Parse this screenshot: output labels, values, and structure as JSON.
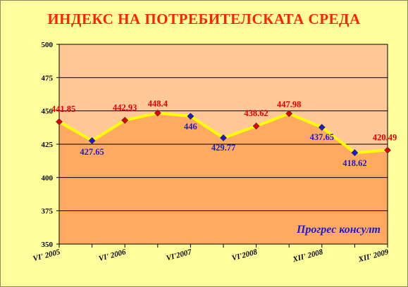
{
  "chart_data": {
    "type": "line",
    "title": "ИНДЕКС НА ПОТРЕБИТЕЛСКАТА СРЕДА",
    "xlabel": "",
    "ylabel": "",
    "ylim": [
      350,
      500
    ],
    "yticks": [
      350,
      375,
      400,
      425,
      450,
      475,
      500
    ],
    "x_tick_labels": [
      "VI' 2005",
      "VI' 2006",
      "VI'2007",
      "VI'2008",
      "XII' 2008",
      "XII' 2009"
    ],
    "data_labels": [
      "441.85",
      "427.65",
      "442.93",
      "448.4",
      "446",
      "429.77",
      "438.62",
      "447.98",
      "437.65",
      "418.62",
      "420.49"
    ],
    "values": [
      441.85,
      427.65,
      442.93,
      448.4,
      446,
      429.77,
      438.62,
      447.98,
      437.65,
      418.62,
      420.49
    ],
    "point_colors": [
      "#e00000",
      "#1a1ad0",
      "#e00000",
      "#e00000",
      "#1a1ad0",
      "#1a1ad0",
      "#e00000",
      "#e00000",
      "#1a1ad0",
      "#1a1ad0",
      "#e00000"
    ],
    "line_color": "#ffff00",
    "upper_band_color": "#ffc896",
    "area_color": "#ffaa60",
    "grid": true,
    "watermark": "Прогрес консулт"
  }
}
